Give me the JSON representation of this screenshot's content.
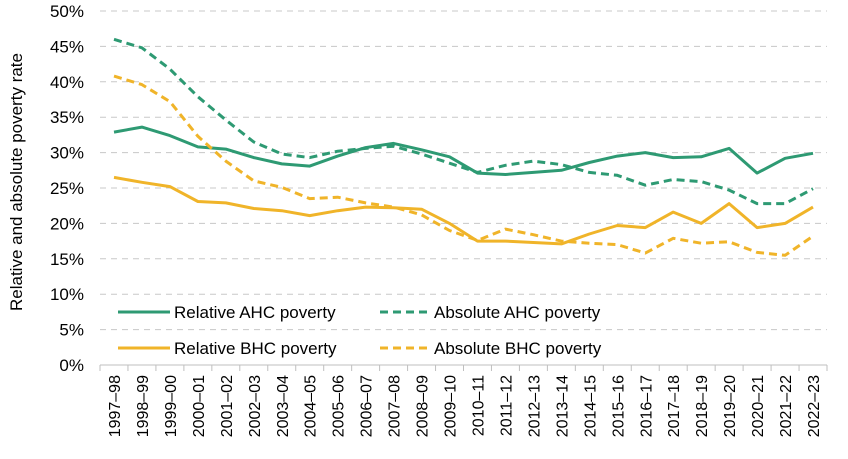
{
  "chart_data": {
    "type": "line",
    "title": "",
    "xlabel": "",
    "ylabel": "Relative and absolute poverty rate",
    "ylim": [
      0,
      50
    ],
    "yticks": [
      "0%",
      "5%",
      "10%",
      "15%",
      "20%",
      "25%",
      "30%",
      "35%",
      "40%",
      "45%",
      "50%"
    ],
    "grid": true,
    "legend_position": "bottom-left",
    "categories": [
      "1997–98",
      "1998–99",
      "1999–00",
      "2000–01",
      "2001–02",
      "2002–03",
      "2003–04",
      "2004–05",
      "2005–06",
      "2006–07",
      "2007–08",
      "2008–09",
      "2009–10",
      "2010–11",
      "2011–12",
      "2012–13",
      "2013–14",
      "2014–15",
      "2015–16",
      "2016–17",
      "2017–18",
      "2018–19",
      "2019–20",
      "2020–21",
      "2021–22",
      "2022–23"
    ],
    "series": [
      {
        "name": "Relative AHC poverty",
        "color": "#2e9a73",
        "style": "solid",
        "values": [
          32.9,
          33.6,
          32.4,
          30.8,
          30.5,
          29.3,
          28.4,
          28.1,
          29.5,
          30.7,
          31.3,
          30.4,
          29.4,
          27.1,
          26.9,
          27.2,
          27.5,
          28.6,
          29.5,
          30.0,
          29.3,
          29.4,
          30.6,
          27.1,
          29.2,
          29.9
        ]
      },
      {
        "name": "Absolute AHC poverty",
        "color": "#2e9a73",
        "style": "dashed",
        "values": [
          46.0,
          44.8,
          41.8,
          37.9,
          34.6,
          31.5,
          29.8,
          29.3,
          30.2,
          30.6,
          30.9,
          29.8,
          28.5,
          27.2,
          28.2,
          28.8,
          28.3,
          27.2,
          26.8,
          25.4,
          26.2,
          25.9,
          24.7,
          22.8,
          22.8,
          24.9
        ]
      },
      {
        "name": "Relative BHC poverty",
        "color": "#f0b429",
        "style": "solid",
        "values": [
          26.5,
          25.8,
          25.2,
          23.1,
          22.9,
          22.1,
          21.8,
          21.1,
          21.8,
          22.3,
          22.2,
          22.0,
          20.0,
          17.5,
          17.5,
          17.3,
          17.1,
          18.5,
          19.7,
          19.4,
          21.6,
          20.0,
          22.8,
          19.4,
          20.0,
          22.3
        ]
      },
      {
        "name": "Absolute BHC poverty",
        "color": "#f0b429",
        "style": "dashed",
        "values": [
          40.8,
          39.6,
          37.2,
          32.3,
          28.8,
          26.0,
          25.1,
          23.5,
          23.7,
          22.9,
          22.3,
          21.2,
          19.0,
          17.6,
          19.2,
          18.4,
          17.5,
          17.2,
          17.0,
          15.8,
          17.9,
          17.2,
          17.4,
          15.9,
          15.5,
          18.2
        ]
      }
    ]
  }
}
